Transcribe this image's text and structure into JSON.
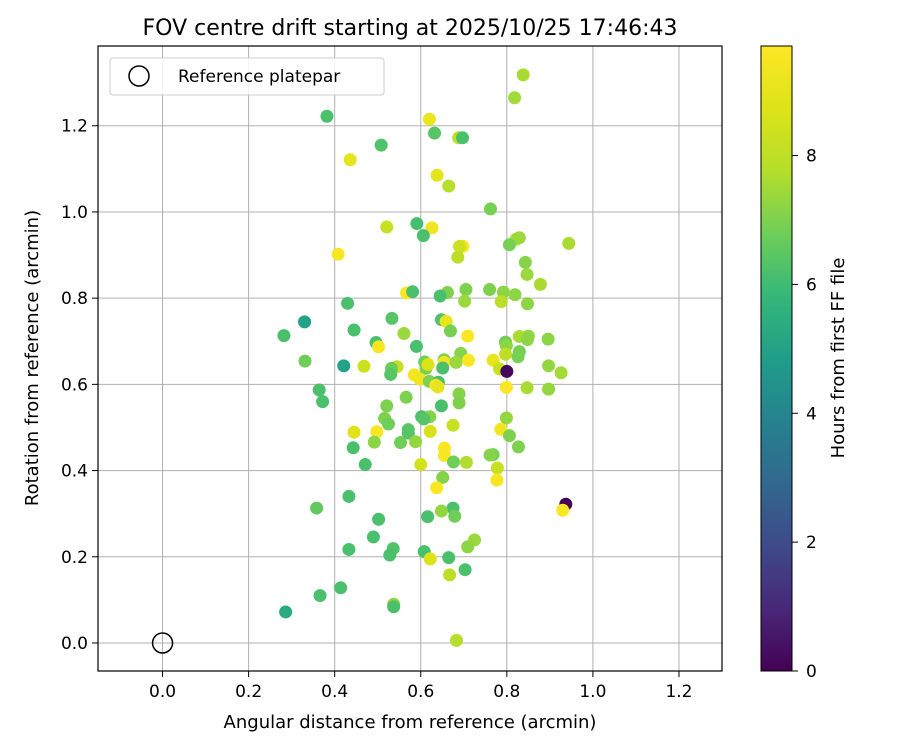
{
  "chart_data": {
    "type": "scatter",
    "title": "FOV centre drift starting at 2025/10/25 17:46:43",
    "xlabel": "Angular distance from reference (arcmin)",
    "ylabel": "Rotation from reference (arcmin)",
    "xlim": [
      -0.15,
      1.3
    ],
    "ylim": [
      -0.065,
      1.385
    ],
    "xticks": [
      0.0,
      0.2,
      0.4,
      0.6,
      0.8,
      1.0,
      1.2
    ],
    "yticks": [
      0.0,
      0.2,
      0.4,
      0.6,
      0.8,
      1.0,
      1.2
    ],
    "xtick_labels": [
      "0.0",
      "0.2",
      "0.4",
      "0.6",
      "0.8",
      "1.0",
      "1.2"
    ],
    "ytick_labels": [
      "0.0",
      "0.2",
      "0.4",
      "0.6",
      "0.8",
      "1.0",
      "1.2"
    ],
    "grid": true,
    "legend": {
      "position": "upper-left",
      "entries": [
        "Reference platepar"
      ]
    },
    "reference_point": {
      "x": 0.0,
      "y": 0.0,
      "label": "Reference platepar"
    },
    "colorbar": {
      "label": "Hours from first FF file",
      "colormap": "viridis",
      "range": [
        0,
        9.7
      ],
      "ticks": [
        0,
        2,
        4,
        6,
        8
      ],
      "tick_labels": [
        "0",
        "2",
        "4",
        "6",
        "8"
      ]
    },
    "points": [
      [
        0.838,
        1.318,
        7.6
      ],
      [
        0.818,
        1.265,
        7.5
      ],
      [
        0.382,
        1.222,
        6.2
      ],
      [
        0.62,
        1.215,
        9.1
      ],
      [
        0.632,
        1.183,
        6.4
      ],
      [
        0.688,
        1.172,
        7.9
      ],
      [
        0.697,
        1.172,
        6.2
      ],
      [
        0.508,
        1.155,
        6.3
      ],
      [
        0.436,
        1.121,
        9.0
      ],
      [
        0.638,
        1.085,
        8.9
      ],
      [
        0.665,
        1.06,
        7.8
      ],
      [
        0.762,
        1.007,
        6.9
      ],
      [
        0.521,
        0.965,
        8.2
      ],
      [
        0.591,
        0.973,
        6.1
      ],
      [
        0.626,
        0.963,
        9.3
      ],
      [
        0.606,
        0.945,
        6.2
      ],
      [
        0.822,
        0.937,
        7.5
      ],
      [
        0.829,
        0.94,
        7.4
      ],
      [
        0.944,
        0.927,
        7.6
      ],
      [
        0.806,
        0.924,
        6.9
      ],
      [
        0.698,
        0.92,
        9.5
      ],
      [
        0.69,
        0.92,
        8.3
      ],
      [
        0.408,
        0.902,
        9.5
      ],
      [
        0.686,
        0.895,
        7.9
      ],
      [
        0.843,
        0.883,
        7.1
      ],
      [
        0.847,
        0.855,
        7.4
      ],
      [
        0.878,
        0.832,
        7.6
      ],
      [
        0.567,
        0.812,
        9.6
      ],
      [
        0.581,
        0.815,
        6.2
      ],
      [
        0.662,
        0.813,
        7.0
      ],
      [
        0.645,
        0.805,
        6.2
      ],
      [
        0.705,
        0.82,
        7.0
      ],
      [
        0.76,
        0.82,
        7.0
      ],
      [
        0.792,
        0.814,
        7.2
      ],
      [
        0.819,
        0.808,
        7.2
      ],
      [
        0.787,
        0.792,
        7.9
      ],
      [
        0.702,
        0.793,
        7.4
      ],
      [
        0.43,
        0.788,
        6.2
      ],
      [
        0.848,
        0.787,
        7.2
      ],
      [
        0.533,
        0.753,
        6.4
      ],
      [
        0.648,
        0.75,
        6.3
      ],
      [
        0.659,
        0.746,
        9.1
      ],
      [
        0.33,
        0.745,
        5.0
      ],
      [
        0.669,
        0.724,
        6.9
      ],
      [
        0.445,
        0.726,
        6.2
      ],
      [
        0.561,
        0.718,
        7.4
      ],
      [
        0.282,
        0.713,
        6.2
      ],
      [
        0.709,
        0.712,
        9.6
      ],
      [
        0.85,
        0.712,
        7.3
      ],
      [
        0.829,
        0.711,
        7.6
      ],
      [
        0.848,
        0.704,
        7.2
      ],
      [
        0.896,
        0.705,
        7.2
      ],
      [
        0.797,
        0.698,
        6.8
      ],
      [
        0.496,
        0.697,
        6.2
      ],
      [
        0.502,
        0.687,
        9.5
      ],
      [
        0.59,
        0.688,
        6.2
      ],
      [
        0.799,
        0.69,
        7.2
      ],
      [
        0.829,
        0.676,
        6.9
      ],
      [
        0.826,
        0.664,
        6.9
      ],
      [
        0.693,
        0.672,
        7.1
      ],
      [
        0.797,
        0.67,
        8.0
      ],
      [
        0.331,
        0.654,
        6.8
      ],
      [
        0.421,
        0.643,
        5.0
      ],
      [
        0.609,
        0.652,
        6.8
      ],
      [
        0.654,
        0.657,
        7.0
      ],
      [
        0.654,
        0.651,
        9.3
      ],
      [
        0.682,
        0.651,
        7.4
      ],
      [
        0.711,
        0.656,
        9.6
      ],
      [
        0.768,
        0.656,
        9.1
      ],
      [
        0.897,
        0.643,
        7.3
      ],
      [
        0.926,
        0.627,
        7.5
      ],
      [
        0.468,
        0.642,
        8.3
      ],
      [
        0.545,
        0.641,
        8.2
      ],
      [
        0.532,
        0.637,
        6.7
      ],
      [
        0.53,
        0.623,
        6.4
      ],
      [
        0.612,
        0.637,
        7.0
      ],
      [
        0.617,
        0.646,
        8.7
      ],
      [
        0.651,
        0.638,
        6.2
      ],
      [
        0.783,
        0.636,
        8.2
      ],
      [
        0.8,
        0.63,
        0.2
      ],
      [
        0.585,
        0.622,
        9.4
      ],
      [
        0.598,
        0.612,
        9.3
      ],
      [
        0.62,
        0.607,
        7.0
      ],
      [
        0.641,
        0.605,
        6.2
      ],
      [
        0.635,
        0.598,
        9.5
      ],
      [
        0.364,
        0.587,
        6.2
      ],
      [
        0.64,
        0.594,
        9.0
      ],
      [
        0.799,
        0.593,
        9.6
      ],
      [
        0.847,
        0.592,
        7.6
      ],
      [
        0.897,
        0.589,
        7.3
      ],
      [
        0.689,
        0.578,
        7.1
      ],
      [
        0.372,
        0.56,
        6.2
      ],
      [
        0.566,
        0.57,
        7.0
      ],
      [
        0.689,
        0.557,
        7.0
      ],
      [
        0.648,
        0.55,
        6.2
      ],
      [
        0.521,
        0.55,
        7.0
      ],
      [
        0.602,
        0.525,
        6.2
      ],
      [
        0.621,
        0.525,
        7.1
      ],
      [
        0.516,
        0.521,
        7.0
      ],
      [
        0.607,
        0.52,
        6.4
      ],
      [
        0.799,
        0.522,
        7.3
      ],
      [
        0.525,
        0.508,
        6.8
      ],
      [
        0.675,
        0.505,
        8.2
      ],
      [
        0.571,
        0.495,
        6.4
      ],
      [
        0.445,
        0.489,
        8.8
      ],
      [
        0.498,
        0.49,
        9.6
      ],
      [
        0.622,
        0.491,
        8.6
      ],
      [
        0.786,
        0.496,
        9.4
      ],
      [
        0.571,
        0.487,
        6.4
      ],
      [
        0.806,
        0.481,
        7.0
      ],
      [
        0.553,
        0.465,
        6.8
      ],
      [
        0.492,
        0.466,
        7.2
      ],
      [
        0.588,
        0.467,
        7.3
      ],
      [
        0.443,
        0.453,
        6.2
      ],
      [
        0.827,
        0.455,
        7.0
      ],
      [
        0.655,
        0.452,
        9.6
      ],
      [
        0.768,
        0.437,
        6.9
      ],
      [
        0.761,
        0.436,
        7.1
      ],
      [
        0.655,
        0.435,
        9.6
      ],
      [
        0.676,
        0.42,
        6.8
      ],
      [
        0.706,
        0.419,
        7.7
      ],
      [
        0.471,
        0.414,
        6.2
      ],
      [
        0.6,
        0.414,
        8.5
      ],
      [
        0.778,
        0.406,
        8.2
      ],
      [
        0.651,
        0.384,
        7.1
      ],
      [
        0.777,
        0.378,
        9.5
      ],
      [
        0.637,
        0.36,
        9.6
      ],
      [
        0.937,
        0.322,
        0.1
      ],
      [
        0.433,
        0.34,
        6.2
      ],
      [
        0.93,
        0.308,
        9.6
      ],
      [
        0.358,
        0.313,
        6.6
      ],
      [
        0.675,
        0.313,
        6.2
      ],
      [
        0.648,
        0.306,
        7.3
      ],
      [
        0.679,
        0.294,
        6.8
      ],
      [
        0.616,
        0.293,
        6.2
      ],
      [
        0.502,
        0.287,
        6.2
      ],
      [
        0.725,
        0.239,
        7.4
      ],
      [
        0.49,
        0.246,
        6.2
      ],
      [
        0.709,
        0.223,
        7.2
      ],
      [
        0.433,
        0.217,
        6.2
      ],
      [
        0.536,
        0.219,
        6.3
      ],
      [
        0.528,
        0.204,
        6.2
      ],
      [
        0.608,
        0.212,
        6.2
      ],
      [
        0.622,
        0.195,
        8.7
      ],
      [
        0.665,
        0.198,
        6.2
      ],
      [
        0.703,
        0.17,
        6.2
      ],
      [
        0.667,
        0.158,
        7.9
      ],
      [
        0.414,
        0.128,
        6.2
      ],
      [
        0.366,
        0.11,
        6.2
      ],
      [
        0.537,
        0.09,
        7.3
      ],
      [
        0.537,
        0.084,
        6.2
      ],
      [
        0.286,
        0.072,
        5.3
      ],
      [
        0.683,
        0.006,
        7.8
      ]
    ]
  }
}
